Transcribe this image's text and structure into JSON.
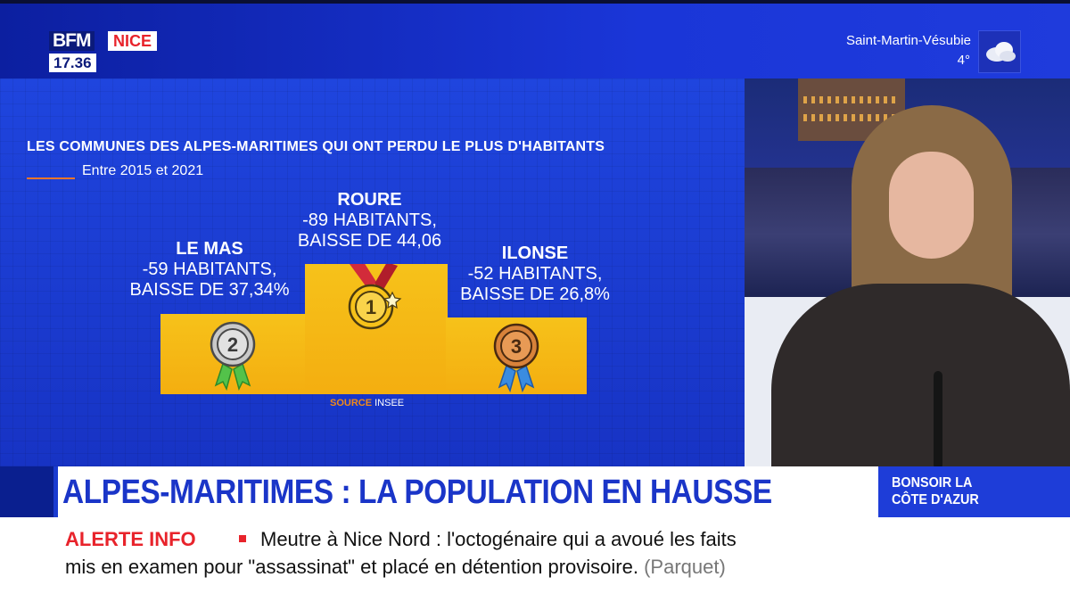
{
  "channel": {
    "brand": "BFM",
    "region": "NICE",
    "time": "17.36"
  },
  "weather": {
    "city": "Saint-Martin-Vésubie",
    "temperature": "4°",
    "icon": "cloud-icon"
  },
  "graphic": {
    "title": "LES COMMUNES DES ALPES-MARITIMES QUI ONT PERDU LE PLUS D'HABITANTS",
    "subtitle": "Entre 2015 et 2021",
    "source_key": "SOURCE",
    "source_value": "INSEE",
    "podium": [
      {
        "rank": "2",
        "name": "LE MAS",
        "line1": "-59 HABITANTS,",
        "line2": "BAISSE DE 37,34%",
        "medal": "silver-medal-icon"
      },
      {
        "rank": "1",
        "name": "ROURE",
        "line1": "-89 HABITANTS,",
        "line2": "BAISSE DE 44,06",
        "medal": "gold-medal-icon"
      },
      {
        "rank": "3",
        "name": "ILONSE",
        "line1": "-52 HABITANTS,",
        "line2": "BAISSE DE 26,8%",
        "medal": "bronze-medal-icon"
      }
    ]
  },
  "headline": {
    "text": "ALPES-MARITIMES : LA POPULATION EN HAUSSE"
  },
  "program": {
    "line1": "BONSOIR LA",
    "line2": "CÔTE D'AZUR"
  },
  "ticker": {
    "label": "ALERTE INFO",
    "line1": "Meutre à Nice Nord : l'octogénaire qui a avoué les faits",
    "line2": "mis en examen pour \"assassinat\" et placé en détention provisoire.",
    "source": "(Parquet)"
  },
  "colors": {
    "brand_blue": "#1a3bd0",
    "alert_red": "#e8232b",
    "podium_yellow": "#f4ae10",
    "accent_orange": "#f0762a"
  }
}
